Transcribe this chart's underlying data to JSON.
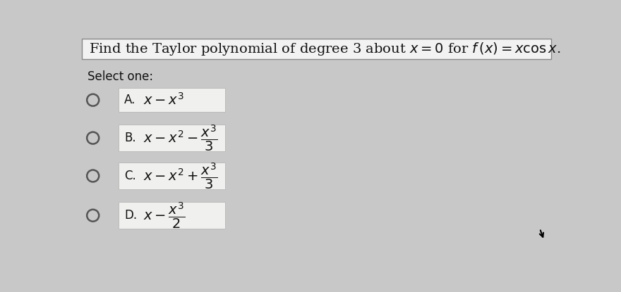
{
  "title_plain": "Find the Taylor polynomial of degree 3 about ",
  "title_math1": "$x = 0$",
  "title_plain2": " for ",
  "title_math2": "$f\\,(x) = x\\cos x$",
  "title_end": ".",
  "title_full": "Find the Taylor polynomial of degree 3 about $x=0$ for $f(x)=x\\cos x$.",
  "select_one": "Select one:",
  "options": [
    {
      "label": "A.",
      "formula": "$x - x^3$"
    },
    {
      "label": "B.",
      "formula": "$x - x^2 - \\dfrac{x^3}{3}$"
    },
    {
      "label": "C.",
      "formula": "$x - x^2 + \\dfrac{x^3}{3}$"
    },
    {
      "label": "D.",
      "formula": "$x - \\dfrac{x^3}{2}$"
    }
  ],
  "background_color": "#c8c8c8",
  "title_bg_color": "#f2f2f2",
  "option_bg_color": "#f0f0ee",
  "title_border_color": "#888888",
  "option_border_color": "#bbbbbb",
  "circle_facecolor": "#c8c8c8",
  "circle_edge_color": "#555555",
  "text_color": "#111111",
  "fig_width": 8.8,
  "fig_height": 4.15,
  "dpi": 100
}
